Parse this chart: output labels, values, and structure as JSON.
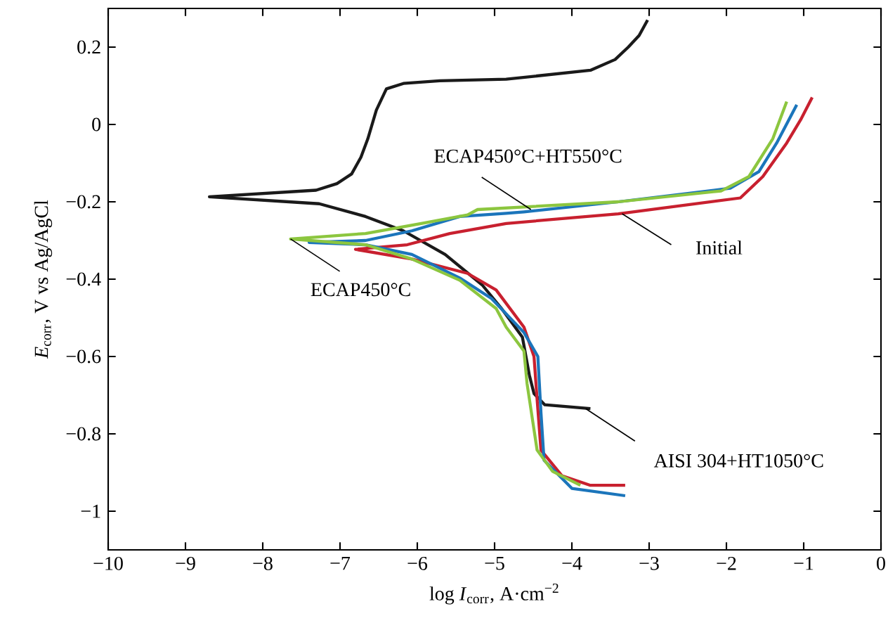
{
  "chart_data": {
    "type": "line",
    "xlabel": "log *I*$_{corr}$, A·cm$^{−2}$",
    "ylabel": "*E*$_{corr}$, V vs Ag/AgCl",
    "xlim": [
      -10,
      0
    ],
    "ylim": [
      -1.1,
      0.3
    ],
    "xticks": [
      {
        "value": -10,
        "label": "−10"
      },
      {
        "value": -9,
        "label": "−9"
      },
      {
        "value": -8,
        "label": "−8"
      },
      {
        "value": -7,
        "label": "−7"
      },
      {
        "value": -6,
        "label": "−6"
      },
      {
        "value": -5,
        "label": "−5"
      },
      {
        "value": -4,
        "label": "−4"
      },
      {
        "value": -3,
        "label": "−3"
      },
      {
        "value": -2,
        "label": "−2"
      },
      {
        "value": -1,
        "label": "−1"
      },
      0
    ],
    "yticks": [
      {
        "value": -1,
        "label": "−1"
      },
      {
        "value": -0.8,
        "label": "−0.8"
      },
      {
        "value": -0.6,
        "label": "−0.6"
      },
      {
        "value": -0.4,
        "label": "−0.4"
      },
      {
        "value": -0.2,
        "label": "−0.2"
      },
      0,
      0.2
    ],
    "grid": false,
    "marker": "none",
    "line_style": "solid",
    "series": [
      {
        "color": "#1a1a1a",
        "x": [
          -3.02,
          -3.13,
          -3.27,
          -3.44,
          -3.76,
          -4.85,
          -5.71,
          -6.18,
          -6.4,
          -6.53,
          -6.64,
          -6.73,
          -6.85,
          -7.04,
          -7.31,
          -8.69,
          -7.27,
          -6.67,
          -6.18,
          -5.64,
          -5.16,
          -4.91,
          -4.64,
          -4.55,
          -4.49,
          -4.35,
          -3.76
        ],
        "values": [
          0.27,
          0.23,
          0.2,
          0.168,
          0.14,
          0.117,
          0.113,
          0.106,
          0.092,
          0.037,
          -0.037,
          -0.085,
          -0.128,
          -0.153,
          -0.17,
          -0.187,
          -0.205,
          -0.238,
          -0.275,
          -0.336,
          -0.415,
          -0.476,
          -0.55,
          -0.648,
          -0.696,
          -0.725,
          -0.735
        ]
      },
      {
        "color": "#c8202f",
        "x": [
          -0.89,
          -1.04,
          -1.22,
          -1.53,
          -1.82,
          -3.4,
          -4.85,
          -5.58,
          -6.13,
          -6.8,
          -6.07,
          -5.35,
          -4.98,
          -4.62,
          -4.49,
          -4.45,
          -4.4,
          -4.13,
          -3.76,
          -3.31
        ],
        "values": [
          0.07,
          0.012,
          -0.048,
          -0.135,
          -0.19,
          -0.231,
          -0.256,
          -0.282,
          -0.311,
          -0.323,
          -0.348,
          -0.385,
          -0.428,
          -0.524,
          -0.6,
          -0.71,
          -0.842,
          -0.908,
          -0.933,
          -0.933
        ]
      },
      {
        "color": "#1b75bb",
        "x": [
          -1.09,
          -1.35,
          -1.58,
          -1.95,
          -3.4,
          -4.62,
          -4.85,
          -5.45,
          -6.07,
          -6.67,
          -7.4,
          -6.67,
          -6.07,
          -5.45,
          -5.04,
          -4.62,
          -4.44,
          -4.4,
          -4.36,
          -4.0,
          -3.31
        ],
        "values": [
          0.051,
          -0.048,
          -0.122,
          -0.165,
          -0.2,
          -0.226,
          -0.23,
          -0.238,
          -0.275,
          -0.3,
          -0.305,
          -0.311,
          -0.336,
          -0.397,
          -0.45,
          -0.538,
          -0.6,
          -0.745,
          -0.868,
          -0.941,
          -0.96
        ]
      },
      {
        "color": "#8cc63f",
        "x": [
          -1.22,
          -1.4,
          -1.71,
          -2.07,
          -3.4,
          -5.22,
          -5.35,
          -5.95,
          -6.67,
          -7.64,
          -6.67,
          -6.07,
          -5.45,
          -4.98,
          -4.85,
          -4.62,
          -4.58,
          -4.45,
          -4.25,
          -3.89
        ],
        "values": [
          0.059,
          -0.037,
          -0.135,
          -0.172,
          -0.2,
          -0.22,
          -0.234,
          -0.256,
          -0.282,
          -0.296,
          -0.311,
          -0.348,
          -0.403,
          -0.476,
          -0.524,
          -0.586,
          -0.67,
          -0.842,
          -0.897,
          -0.933
        ]
      }
    ],
    "annotations": [
      {
        "text": "ECAP450°C+HT550°C",
        "x": -4.53,
        "y": -0.22
      },
      {
        "text": "Initial",
        "x": -3.35,
        "y": -0.231
      },
      {
        "text": "ECAP450°C",
        "x": -7.64,
        "y": -0.296
      },
      {
        "text": "AISI 304+HT1050°C",
        "x": -3.82,
        "y": -0.735
      }
    ]
  }
}
